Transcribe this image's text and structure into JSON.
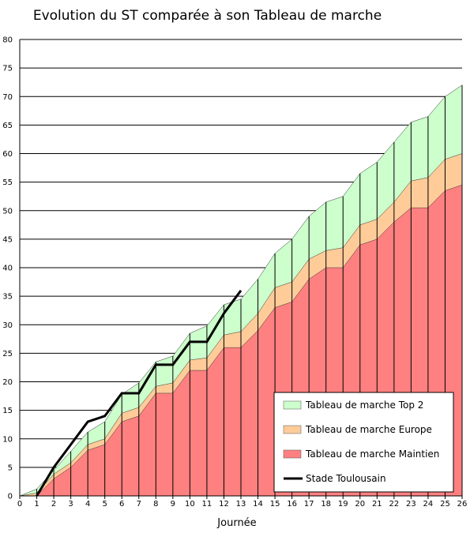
{
  "chart_data": {
    "type": "area",
    "title": "Evolution du ST comparée à son Tableau de marche",
    "xlabel": "Journée",
    "ylabel": "",
    "xlim": [
      0,
      26
    ],
    "ylim": [
      0,
      80
    ],
    "x_ticks": [
      0,
      1,
      2,
      3,
      4,
      5,
      6,
      7,
      8,
      9,
      10,
      11,
      12,
      13,
      14,
      15,
      16,
      17,
      18,
      19,
      20,
      21,
      22,
      23,
      24,
      25,
      26
    ],
    "y_ticks": [
      0,
      5,
      10,
      15,
      20,
      25,
      30,
      35,
      40,
      45,
      50,
      55,
      60,
      65,
      70,
      75,
      80
    ],
    "grid": "horizontal",
    "legend_position": "bottom-right",
    "series": [
      {
        "name": "Tableau de marche Top 2",
        "kind": "area",
        "color": "#ccffcc",
        "x": [
          0,
          1,
          2,
          3,
          4,
          5,
          6,
          7,
          8,
          9,
          10,
          11,
          12,
          13,
          14,
          15,
          16,
          17,
          18,
          19,
          20,
          21,
          22,
          23,
          24,
          25,
          26
        ],
        "values": [
          0,
          1.2,
          4.5,
          7.8,
          11.2,
          13,
          17.8,
          19.8,
          23.5,
          24.5,
          28.5,
          29.8,
          33.5,
          34.5,
          38,
          42.5,
          45,
          49,
          51.5,
          52.5,
          56.5,
          58.5,
          62,
          65.5,
          66.5,
          70,
          72
        ]
      },
      {
        "name": "Tableau de marche Europe",
        "kind": "area",
        "color": "#ffcc99",
        "x": [
          0,
          1,
          2,
          3,
          4,
          5,
          6,
          7,
          8,
          9,
          10,
          11,
          12,
          13,
          14,
          15,
          16,
          17,
          18,
          19,
          20,
          21,
          22,
          23,
          24,
          25,
          26
        ],
        "values": [
          0,
          0.5,
          3.8,
          5.8,
          9,
          10,
          14.5,
          15.5,
          19.2,
          19.8,
          23.8,
          24.2,
          28.2,
          28.8,
          32,
          36.5,
          37.5,
          41.5,
          43,
          43.5,
          47.5,
          48.5,
          51.5,
          55.2,
          55.8,
          59,
          60
        ]
      },
      {
        "name": "Tableau de marche Maintien",
        "kind": "area",
        "color": "#ff8080",
        "x": [
          0,
          1,
          2,
          3,
          4,
          5,
          6,
          7,
          8,
          9,
          10,
          11,
          12,
          13,
          14,
          15,
          16,
          17,
          18,
          19,
          20,
          21,
          22,
          23,
          24,
          25,
          26
        ],
        "values": [
          0,
          0,
          3,
          5,
          8,
          9,
          13,
          14,
          18,
          18,
          22,
          22,
          26,
          26,
          29,
          33,
          34,
          38,
          40,
          40,
          44,
          45,
          48,
          50.5,
          50.5,
          53.5,
          54.5
        ]
      },
      {
        "name": "Stade Toulousain",
        "kind": "line",
        "color": "#000000",
        "x": [
          1,
          2,
          3,
          4,
          5,
          6,
          7,
          8,
          9,
          10,
          11,
          12,
          13
        ],
        "values": [
          0,
          5,
          9,
          13,
          14,
          18,
          18,
          23,
          23,
          27,
          27,
          32,
          36
        ]
      }
    ]
  }
}
